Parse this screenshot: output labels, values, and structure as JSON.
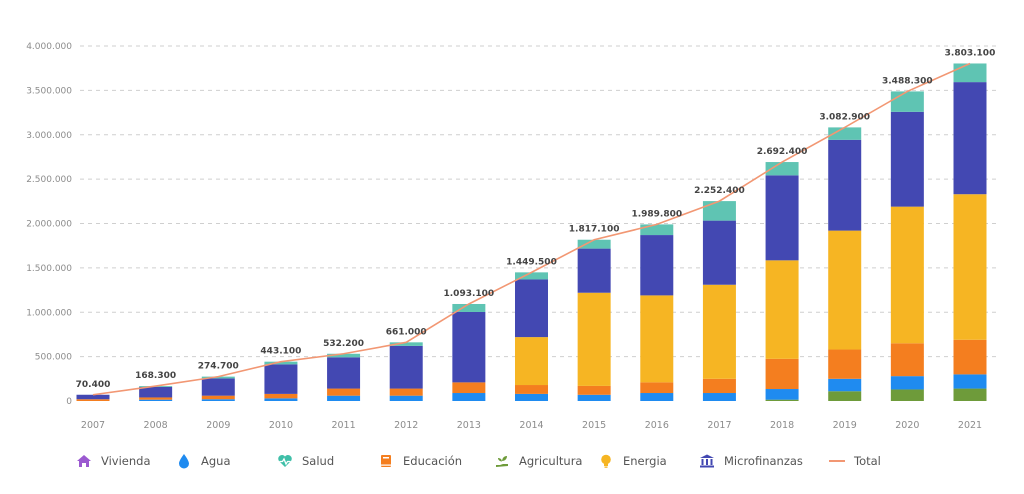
{
  "chart_data": {
    "type": "bar",
    "stacked": true,
    "title": "",
    "xlabel": "",
    "ylabel": "",
    "ylim": [
      0,
      4000000
    ],
    "y_ticks": [
      "0",
      "500.000",
      "1.000.000",
      "1.500.000",
      "2.000.000",
      "2.500.000",
      "3.000.000",
      "3.500.000",
      "4.000.000"
    ],
    "grid": true,
    "legend_position": "bottom",
    "categories": [
      "2007",
      "2008",
      "2009",
      "2010",
      "2011",
      "2012",
      "2013",
      "2014",
      "2015",
      "2016",
      "2017",
      "2018",
      "2019",
      "2020",
      "2021"
    ],
    "series": [
      {
        "name": "Vivienda",
        "color": "#9b59d0",
        "values": [
          0,
          0,
          0,
          0,
          0,
          0,
          0,
          0,
          0,
          0,
          0,
          0,
          0,
          0,
          0
        ]
      },
      {
        "name": "Agricultura",
        "color": "#6e9b3a",
        "values": [
          0,
          0,
          0,
          0,
          0,
          0,
          0,
          0,
          0,
          0,
          0,
          15000,
          110000,
          130000,
          140000
        ]
      },
      {
        "name": "Agua",
        "color": "#1f8bf0",
        "values": [
          0,
          15000,
          20000,
          30000,
          60000,
          60000,
          90000,
          80000,
          70000,
          90000,
          90000,
          120000,
          140000,
          150000,
          160000
        ]
      },
      {
        "name": "Educación",
        "color": "#f47e1f",
        "values": [
          20000,
          25000,
          40000,
          50000,
          80000,
          80000,
          120000,
          100000,
          100000,
          120000,
          160000,
          340000,
          330000,
          370000,
          390000
        ]
      },
      {
        "name": "Energia",
        "color": "#f6b523",
        "values": [
          0,
          0,
          0,
          0,
          0,
          0,
          0,
          540000,
          1050000,
          980000,
          1060000,
          1110000,
          1340000,
          1540000,
          1640000
        ]
      },
      {
        "name": "Microfinanzas",
        "color": "#4348b2",
        "values": [
          50400,
          118300,
          194700,
          333100,
          352200,
          481000,
          793100,
          649500,
          497100,
          679800,
          722400,
          957400,
          1022900,
          1068300,
          1263100
        ]
      },
      {
        "name": "Salud",
        "color": "#5fc4b3",
        "values": [
          0,
          10000,
          20000,
          30000,
          40000,
          40000,
          90000,
          80000,
          100000,
          120000,
          220000,
          150000,
          140000,
          230000,
          210000
        ]
      }
    ],
    "total": {
      "name": "Total",
      "color": "#f29773",
      "values": [
        70400,
        168300,
        274700,
        443100,
        532200,
        661000,
        1093100,
        1449500,
        1817100,
        1989800,
        2252400,
        2692400,
        3082900,
        3488300,
        3803100
      ],
      "labels": [
        "70.400",
        "168.300",
        "274.700",
        "443.100",
        "532.200",
        "661.000",
        "1.093.100",
        "1.449.500",
        "1.817.100",
        "1.989.800",
        "2.252.400",
        "2.692.400",
        "3.082.900",
        "3.488.300",
        "3.803.100"
      ]
    }
  },
  "legend": {
    "items": [
      {
        "label": "Vivienda",
        "icon": "house-icon",
        "color": "#9b59d0"
      },
      {
        "label": "Agua",
        "icon": "water-drop-icon",
        "color": "#1f8bf0"
      },
      {
        "label": "Salud",
        "icon": "heart-pulse-icon",
        "color": "#3fbfa8"
      },
      {
        "label": "Educación",
        "icon": "book-icon",
        "color": "#f47e1f"
      },
      {
        "label": "Agricultura",
        "icon": "plant-hand-icon",
        "color": "#6e9b3a"
      },
      {
        "label": "Energia",
        "icon": "lightbulb-icon",
        "color": "#f6b523"
      },
      {
        "label": "Microfinanzas",
        "icon": "bank-icon",
        "color": "#4348b2"
      },
      {
        "label": "Total",
        "icon": "line-icon",
        "color": "#f29773"
      }
    ]
  }
}
